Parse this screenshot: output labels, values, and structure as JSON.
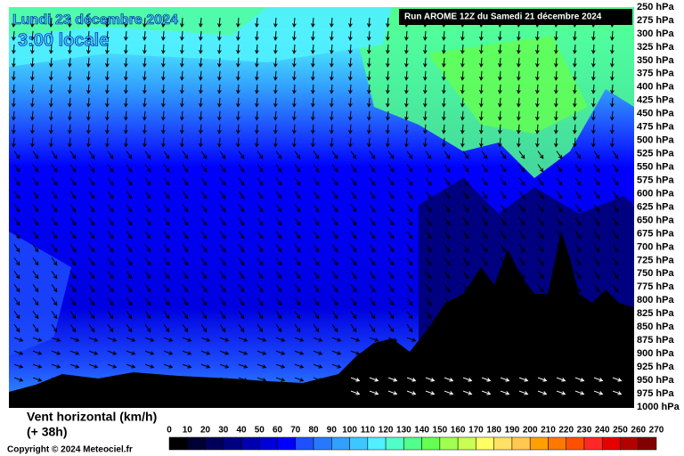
{
  "header": {
    "date": "Lundi 23 décembre 2024",
    "time": "3:00 locale",
    "run": "Run AROME 12Z du Samedi 21 décembre 2024"
  },
  "levels": [
    "250 hPa",
    "275 hPa",
    "300 hPa",
    "325 hPa",
    "350 hPa",
    "375 hPa",
    "400 hPa",
    "425 hPa",
    "450 hPa",
    "475 hPa",
    "500 hPa",
    "525 hPa",
    "550 hPa",
    "575 hPa",
    "600 hPa",
    "625 hPa",
    "650 hPa",
    "675 hPa",
    "700 hPa",
    "725 hPa",
    "750 hPa",
    "775 hPa",
    "800 hPa",
    "825 hPa",
    "850 hPa",
    "875 hPa",
    "900 hPa",
    "925 hPa",
    "950 hPa",
    "975 hPa",
    "1000 hPa"
  ],
  "footer": {
    "variable": "Vent horizontal (km/h)",
    "lead": "(+ 38h)",
    "copyright": "Copyright © 2024 Meteociel.fr"
  },
  "scale": {
    "labels": [
      0,
      10,
      20,
      30,
      40,
      50,
      60,
      70,
      80,
      90,
      100,
      110,
      120,
      130,
      140,
      150,
      160,
      170,
      180,
      190,
      200,
      210,
      220,
      230,
      240,
      250,
      260,
      270
    ],
    "colors": [
      "#000000",
      "#000033",
      "#00005a",
      "#000080",
      "#0000b0",
      "#0000d8",
      "#0000ff",
      "#1e50ff",
      "#2878ff",
      "#32a0ff",
      "#3cc8ff",
      "#50f0ff",
      "#50ffc8",
      "#50ff8c",
      "#64ff50",
      "#a0ff50",
      "#c8ff50",
      "#ffff64",
      "#ffe164",
      "#ffc850",
      "#ffa000",
      "#ff7800",
      "#ff5000",
      "#ff2828",
      "#e60000",
      "#b40000",
      "#820000"
    ]
  }
}
